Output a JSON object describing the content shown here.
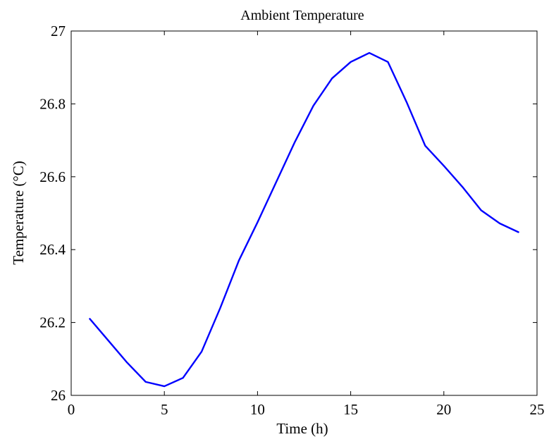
{
  "chart_data": {
    "type": "line",
    "title": "Ambient Temperature",
    "xlabel": "Time (h)",
    "ylabel": "Temperature (°C)",
    "xlim": [
      0,
      25
    ],
    "ylim": [
      26,
      27
    ],
    "xticks": [
      0,
      5,
      10,
      15,
      20,
      25
    ],
    "xtick_labels": [
      "0",
      "5",
      "10",
      "15",
      "20",
      "25"
    ],
    "yticks": [
      26,
      26.2,
      26.4,
      26.6,
      26.8,
      27
    ],
    "ytick_labels": [
      "26",
      "26.2",
      "26.4",
      "26.6",
      "26.8",
      "27"
    ],
    "grid": false,
    "legend": "none",
    "series": [
      {
        "color": "#0000ff",
        "x": [
          1,
          2,
          3,
          4,
          5,
          6,
          7,
          8,
          9,
          10,
          11,
          12,
          13,
          14,
          15,
          16,
          17,
          18,
          19,
          20,
          21,
          22,
          23,
          24
        ],
        "y": [
          26.21,
          26.15,
          26.09,
          26.037,
          26.025,
          26.048,
          26.12,
          26.24,
          26.37,
          26.475,
          26.585,
          26.695,
          26.795,
          26.87,
          26.915,
          26.94,
          26.915,
          26.805,
          26.685,
          26.63,
          26.572,
          26.508,
          26.472,
          26.448
        ]
      }
    ]
  }
}
